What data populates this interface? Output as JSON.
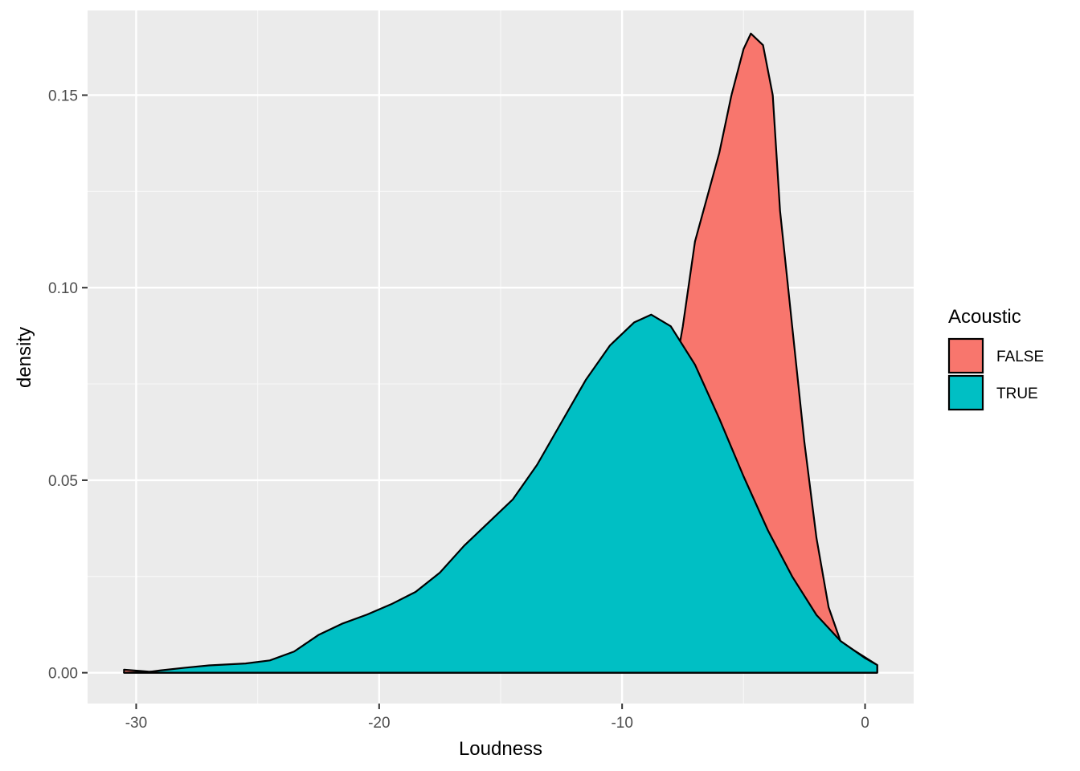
{
  "chart_data": {
    "type": "area",
    "xlabel": "Loudness",
    "ylabel": "density",
    "xlim": [
      -32,
      2
    ],
    "ylim": [
      -0.008,
      0.172
    ],
    "x_ticks": [
      -30,
      -20,
      -10,
      0
    ],
    "x_tick_labels": [
      "-30",
      "-20",
      "-10",
      "0"
    ],
    "y_ticks": [
      0.0,
      0.05,
      0.1,
      0.15
    ],
    "y_tick_labels": [
      "0.00",
      "0.05",
      "0.10",
      "0.15"
    ],
    "grid": true,
    "legend": {
      "title": "Acoustic",
      "placement": "right",
      "entries": [
        {
          "label": "FALSE",
          "color": "#F8766D"
        },
        {
          "label": "TRUE",
          "color": "#00BFC4"
        }
      ]
    },
    "series": [
      {
        "name": "FALSE",
        "color": "#F8766D",
        "x": [
          -30.5,
          -29.5,
          -28,
          -26,
          -24,
          -22,
          -20,
          -18,
          -16,
          -14,
          -12,
          -11,
          -10,
          -9,
          -8,
          -7.5,
          -7,
          -6,
          -5.5,
          -5,
          -4.7,
          -4.2,
          -3.8,
          -3.5,
          -3,
          -2.5,
          -2,
          -1.5,
          -1,
          0.5
        ],
        "y": [
          0.0008,
          0.0003,
          0.0001,
          0.0001,
          0.0001,
          0.0002,
          0.0005,
          0.001,
          0.002,
          0.004,
          0.01,
          0.016,
          0.028,
          0.045,
          0.072,
          0.09,
          0.112,
          0.135,
          0.15,
          0.162,
          0.166,
          0.163,
          0.15,
          0.12,
          0.09,
          0.06,
          0.035,
          0.017,
          0.008,
          0.002
        ]
      },
      {
        "name": "TRUE",
        "color": "#00BFC4",
        "x": [
          -30.5,
          -29.5,
          -29,
          -28,
          -27,
          -25.5,
          -24.5,
          -23.5,
          -22.5,
          -21.5,
          -20.5,
          -19.5,
          -18.5,
          -17.5,
          -16.5,
          -15.5,
          -14.5,
          -13.5,
          -12.5,
          -11.5,
          -10.5,
          -9.5,
          -8.8,
          -8,
          -7,
          -6,
          -5,
          -4,
          -3,
          -2,
          -1,
          0,
          0.5
        ],
        "y": [
          0.0,
          0.0002,
          0.0006,
          0.0013,
          0.0019,
          0.0024,
          0.0032,
          0.0055,
          0.0098,
          0.0128,
          0.0151,
          0.0178,
          0.021,
          0.026,
          0.033,
          0.039,
          0.045,
          0.054,
          0.065,
          0.076,
          0.085,
          0.091,
          0.093,
          0.09,
          0.08,
          0.066,
          0.051,
          0.037,
          0.025,
          0.015,
          0.0082,
          0.0038,
          0.002
        ]
      }
    ]
  }
}
